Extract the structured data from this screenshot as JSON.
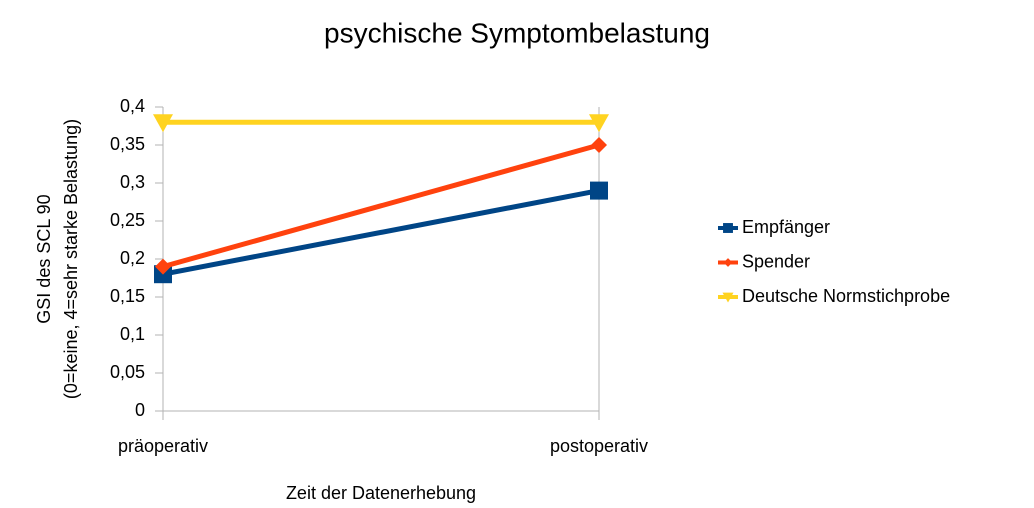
{
  "chart_data": {
    "type": "line",
    "title": "psychische Symptombelastung",
    "xlabel": "Zeit der Datenerhebung",
    "ylabel": [
      "GSI des SCL 90",
      "(0=keine, 4=sehr starke Belastung)"
    ],
    "categories": [
      "präoperativ",
      "postoperativ"
    ],
    "series": [
      {
        "name": "Empfänger",
        "color": "#004586",
        "marker": "square",
        "values": [
          0.18,
          0.29
        ]
      },
      {
        "name": "Spender",
        "color": "#ff420e",
        "marker": "diamond",
        "values": [
          0.19,
          0.35
        ]
      },
      {
        "name": "Deutsche Normstichprobe",
        "color": "#ffd320",
        "marker": "triangle-down",
        "values": [
          0.38,
          0.38
        ]
      }
    ],
    "ylim": [
      0,
      0.4
    ],
    "yticks": [
      0,
      {
        "value": 0.05,
        "label": "0,05"
      },
      {
        "value": 0.1,
        "label": "0,1"
      },
      {
        "value": 0.15,
        "label": "0,15"
      },
      {
        "value": 0.2,
        "label": "0,2"
      },
      {
        "value": 0.25,
        "label": "0,25"
      },
      {
        "value": 0.3,
        "label": "0,3"
      },
      {
        "value": 0.35,
        "label": "0,35"
      },
      {
        "value": 0.4,
        "label": "0,4"
      }
    ],
    "grid": false,
    "legend": "right"
  }
}
